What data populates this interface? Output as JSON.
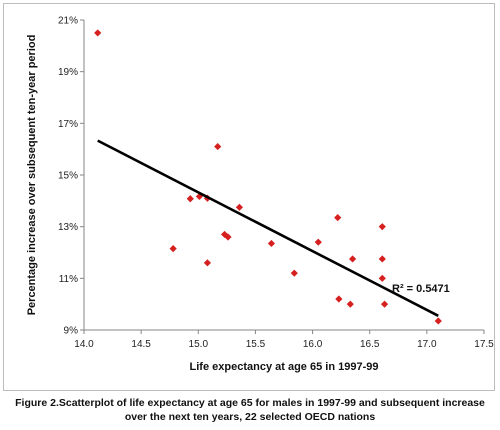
{
  "chart_data": {
    "type": "scatter",
    "xlabel": "Life expectancy at age 65 in 1997-99",
    "ylabel": "Percentage increase over subsequent ten-year period",
    "xlim": [
      14.0,
      17.5
    ],
    "ylim": [
      9,
      21
    ],
    "x_ticks": [
      "14.0",
      "14.5",
      "15.0",
      "15.5",
      "16.0",
      "16.5",
      "17.0",
      "17.5"
    ],
    "y_ticks": [
      "9%",
      "11%",
      "13%",
      "15%",
      "17%",
      "19%",
      "21%"
    ],
    "x_tick_values": [
      14.0,
      14.5,
      15.0,
      15.5,
      16.0,
      16.5,
      17.0,
      17.5
    ],
    "y_tick_values": [
      9,
      11,
      13,
      15,
      17,
      19,
      21
    ],
    "grid": false,
    "marker_color": "#d62020",
    "series": [
      {
        "points": [
          [
            14.12,
            20.5
          ],
          [
            14.78,
            12.15
          ],
          [
            14.93,
            14.08
          ],
          [
            15.01,
            14.17
          ],
          [
            15.08,
            14.1
          ],
          [
            15.08,
            11.6
          ],
          [
            15.17,
            16.1
          ],
          [
            15.23,
            12.7
          ],
          [
            15.26,
            12.6
          ],
          [
            15.36,
            13.75
          ],
          [
            15.64,
            12.35
          ],
          [
            15.84,
            11.2
          ],
          [
            16.05,
            12.4
          ],
          [
            16.22,
            13.35
          ],
          [
            16.23,
            10.2
          ],
          [
            16.33,
            10.0
          ],
          [
            16.35,
            11.75
          ],
          [
            16.61,
            13.0
          ],
          [
            16.61,
            11.75
          ],
          [
            16.61,
            11.0
          ],
          [
            16.63,
            10.0
          ],
          [
            17.1,
            9.35
          ]
        ]
      }
    ],
    "trendline": {
      "x": [
        14.12,
        17.1
      ],
      "y": [
        16.33,
        9.55
      ],
      "color": "#000000"
    },
    "annotation": {
      "text": "R² = 0.5471"
    }
  },
  "caption": {
    "line1": "Figure 2.Scatterplot of life expectancy at age 65 for males in 1997-99 and subsequent increase",
    "line2": "over the next ten years, 22 selected OECD nations"
  }
}
